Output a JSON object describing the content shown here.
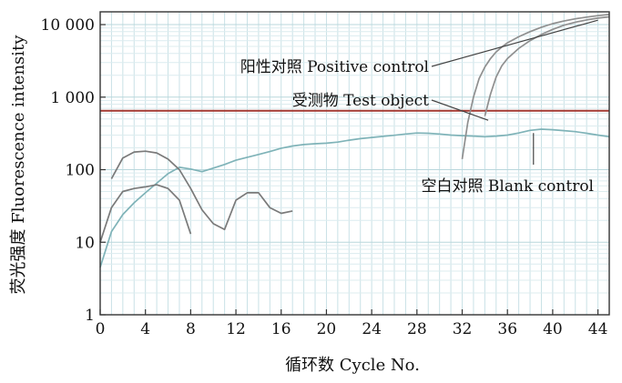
{
  "chart_data": {
    "type": "line",
    "xlabel": "循环数 Cycle No.",
    "ylabel": "荧光强度 Fluorescence intensity",
    "xlim": [
      0,
      45
    ],
    "ylim": [
      1,
      15000
    ],
    "y_scale": "log",
    "grid": true,
    "x_ticks": [
      0,
      4,
      8,
      12,
      16,
      20,
      24,
      28,
      32,
      36,
      40,
      44
    ],
    "x_tick_labels": [
      "0",
      "4",
      "8",
      "12",
      "16",
      "20",
      "24",
      "28",
      "32",
      "36",
      "40",
      "44"
    ],
    "y_ticks": [
      1,
      10,
      100,
      1000,
      10000
    ],
    "y_tick_labels": [
      "1",
      "10",
      "100",
      "1 000",
      "10 000"
    ],
    "threshold": {
      "value": 650,
      "color": "#a33a32"
    },
    "annotations": [
      {
        "text": "阳性对照  Positive control",
        "x": 44,
        "y": 11500
      },
      {
        "text": "受测物  Test object",
        "x": 34.3,
        "y": 480
      },
      {
        "text": "空白对照  Blank control",
        "x": 38.3,
        "y": 320
      }
    ],
    "series": [
      {
        "color": "#7fb3b8",
        "x": [
          0,
          1,
          2,
          3,
          4,
          5,
          6,
          7,
          8,
          9,
          10,
          11,
          12,
          13,
          14,
          15,
          16,
          17,
          18,
          19,
          20,
          21,
          22,
          23,
          24,
          25,
          26,
          27,
          28,
          29,
          30,
          31,
          32,
          33,
          34,
          35,
          36,
          37,
          38,
          39,
          40,
          41,
          42,
          43,
          44,
          45
        ],
        "values": [
          4.5,
          14,
          24,
          35,
          48,
          65,
          88,
          108,
          102,
          94,
          105,
          118,
          135,
          148,
          162,
          178,
          198,
          212,
          222,
          228,
          232,
          240,
          255,
          268,
          278,
          288,
          298,
          310,
          320,
          318,
          310,
          300,
          295,
          290,
          285,
          290,
          300,
          320,
          348,
          362,
          355,
          345,
          335,
          318,
          300,
          285
        ]
      },
      {
        "color": "#7a7a7a",
        "x": [
          0,
          1,
          2,
          3,
          4,
          5,
          6,
          7,
          8
        ],
        "values": [
          10,
          30,
          50,
          55,
          58,
          62,
          55,
          38,
          13
        ]
      },
      {
        "color": "#7a7a7a",
        "x": [
          1,
          2,
          3,
          4,
          5,
          6,
          7,
          8,
          9,
          10,
          11,
          12,
          13,
          14,
          15,
          16,
          17
        ],
        "values": [
          75,
          145,
          175,
          180,
          170,
          140,
          100,
          55,
          28,
          18,
          15,
          38,
          48,
          48,
          30,
          25,
          27
        ]
      },
      {
        "color": "#8f8f8f",
        "x": [
          32,
          32.5,
          33,
          33.5,
          34,
          34.5,
          35,
          35.5,
          36,
          37,
          38,
          39,
          40,
          41,
          42,
          43,
          44,
          45
        ],
        "values": [
          140,
          450,
          1000,
          1800,
          2600,
          3400,
          4200,
          4900,
          5600,
          6800,
          8000,
          9200,
          10300,
          11200,
          12000,
          12700,
          13300,
          13800
        ]
      },
      {
        "color": "#8f8f8f",
        "x": [
          34,
          34.5,
          35,
          35.5,
          36,
          37,
          38,
          39,
          40,
          41,
          42,
          43,
          44,
          45
        ],
        "values": [
          550,
          1100,
          1900,
          2700,
          3400,
          4700,
          6000,
          7300,
          8600,
          9800,
          10800,
          11600,
          12300,
          12800
        ]
      }
    ]
  }
}
